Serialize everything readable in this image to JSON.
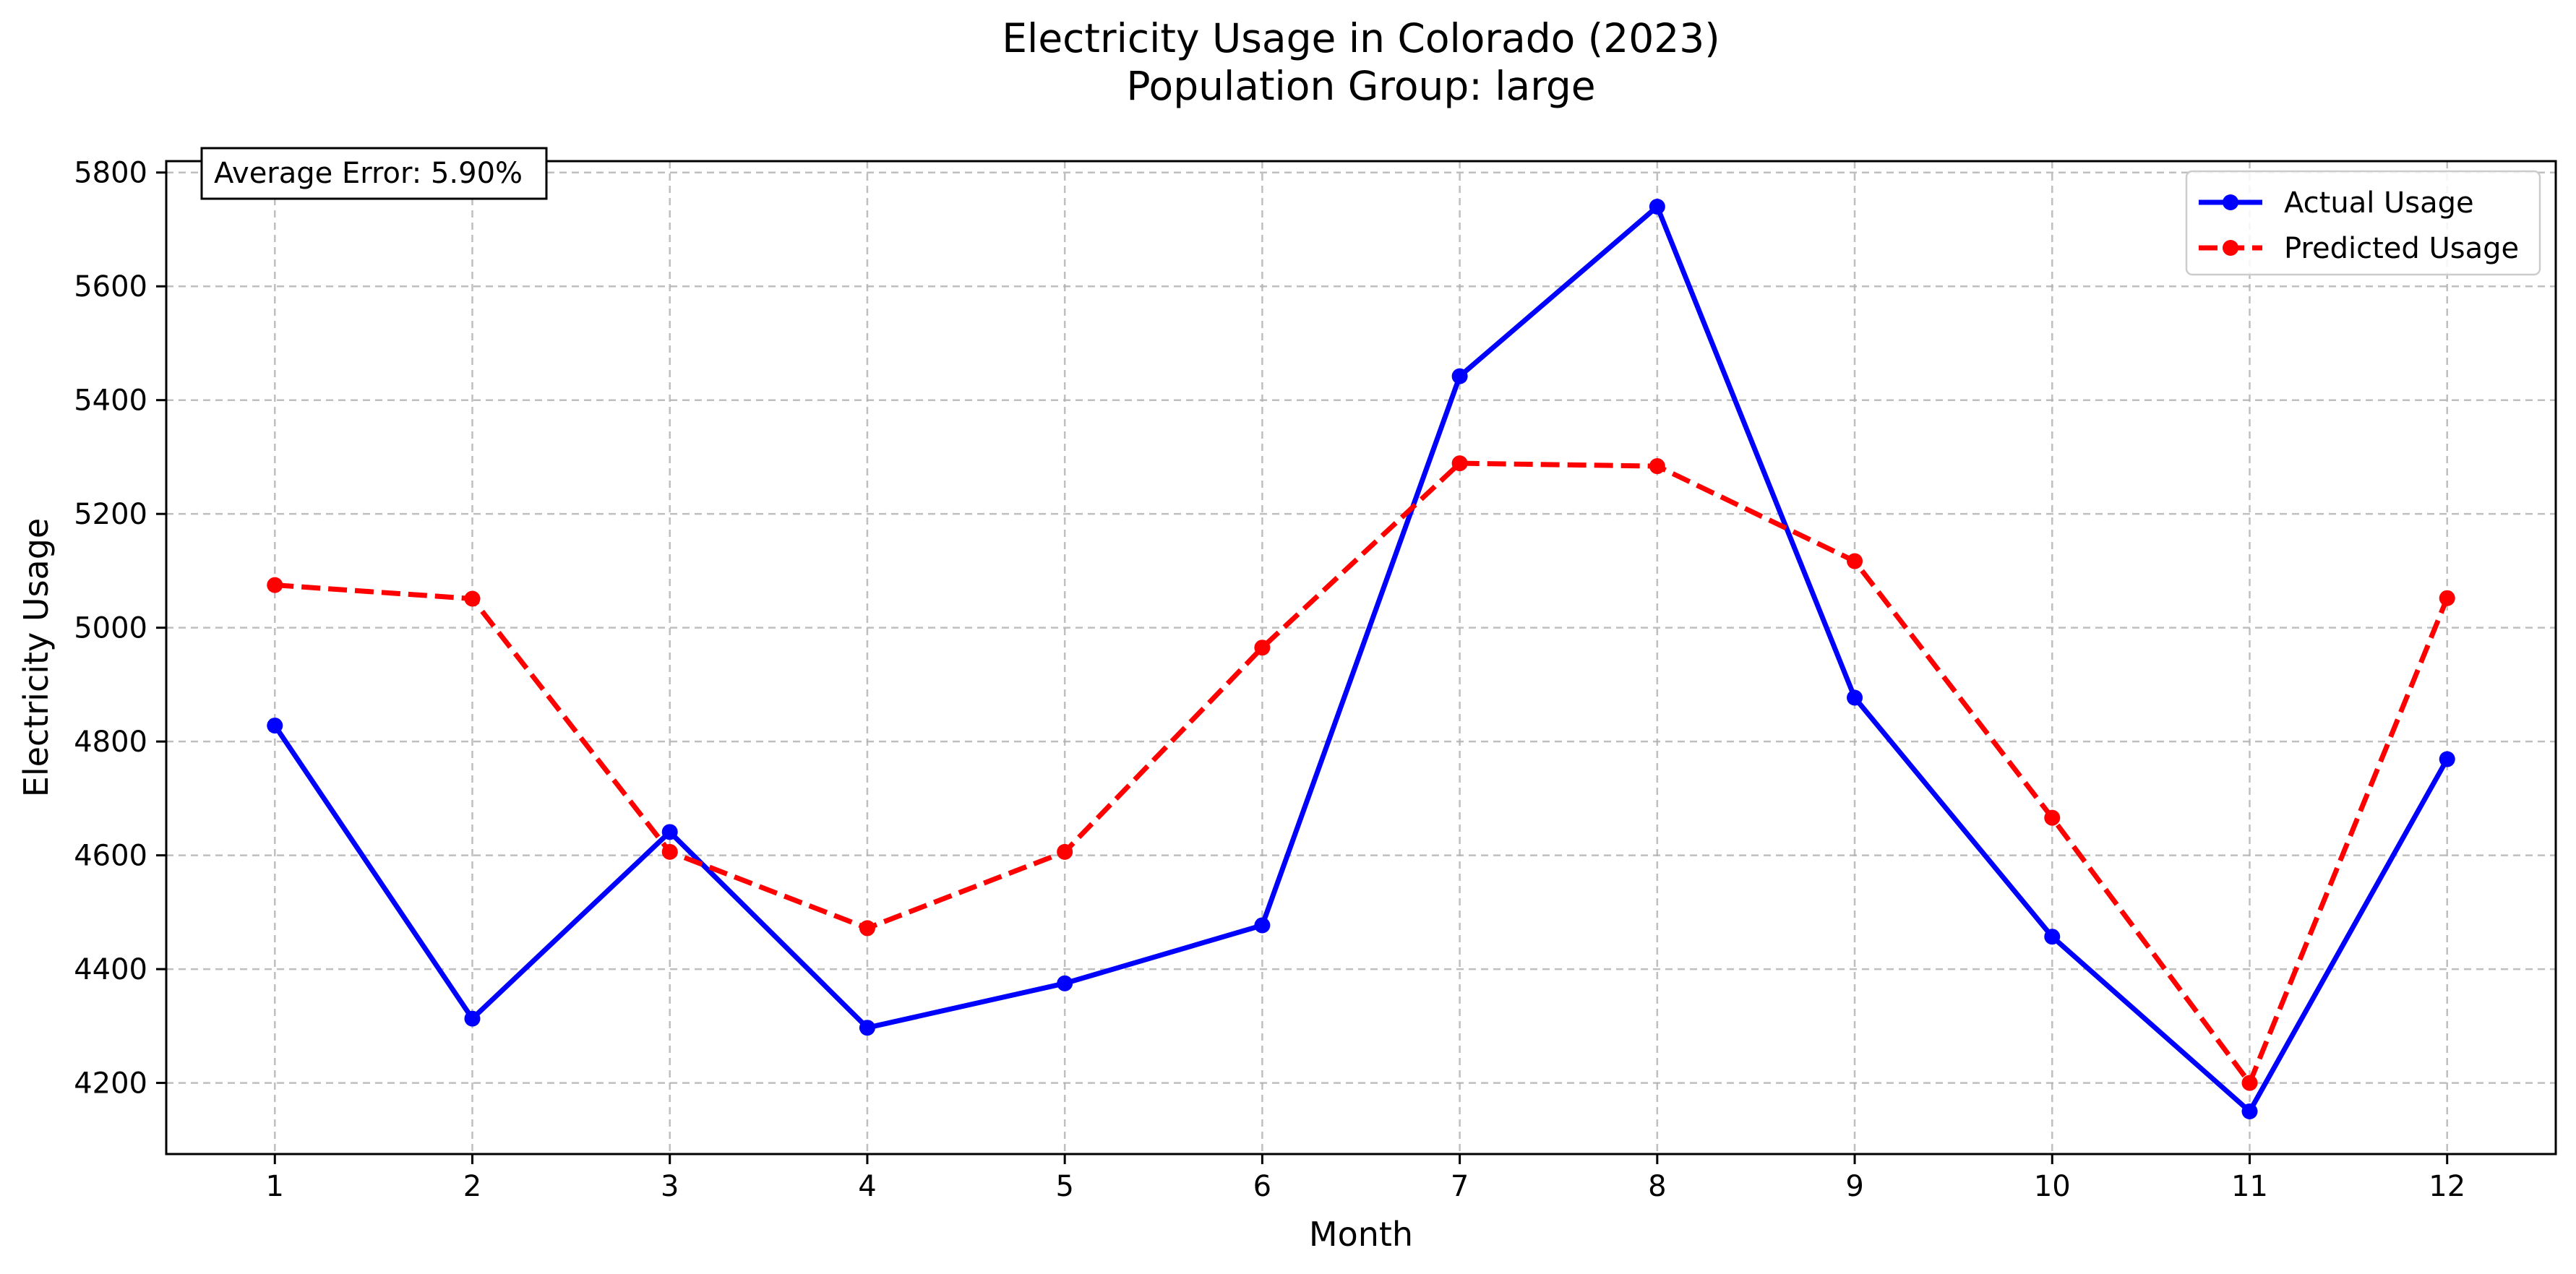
{
  "chart_data": {
    "type": "line",
    "title": "Electricity Usage in Colorado (2023)",
    "subtitle": "Population Group: large",
    "xlabel": "Month",
    "ylabel": "Electricity Usage",
    "x": [
      1,
      2,
      3,
      4,
      5,
      6,
      7,
      8,
      9,
      10,
      11,
      12
    ],
    "xlim": [
      0.45,
      12.55
    ],
    "ylim": [
      4075,
      5820
    ],
    "yticks": [
      4200,
      4400,
      4600,
      4800,
      5000,
      5200,
      5400,
      5600,
      5800
    ],
    "grid": true,
    "legend_position": "top-right",
    "annotation": "Average Error: 5.90%",
    "series": [
      {
        "name": "Actual Usage",
        "color": "#0000ff",
        "linestyle": "solid",
        "marker": "circle",
        "values": [
          4828,
          4313,
          4641,
          4297,
          4375,
          4477,
          5442,
          5740,
          4877,
          4457,
          4150,
          4769
        ]
      },
      {
        "name": "Predicted Usage",
        "color": "#ff0000",
        "linestyle": "dashed",
        "marker": "circle",
        "values": [
          5075,
          5051,
          4606,
          4472,
          4606,
          4965,
          5289,
          5284,
          5117,
          4666,
          4200,
          5052
        ]
      }
    ]
  }
}
